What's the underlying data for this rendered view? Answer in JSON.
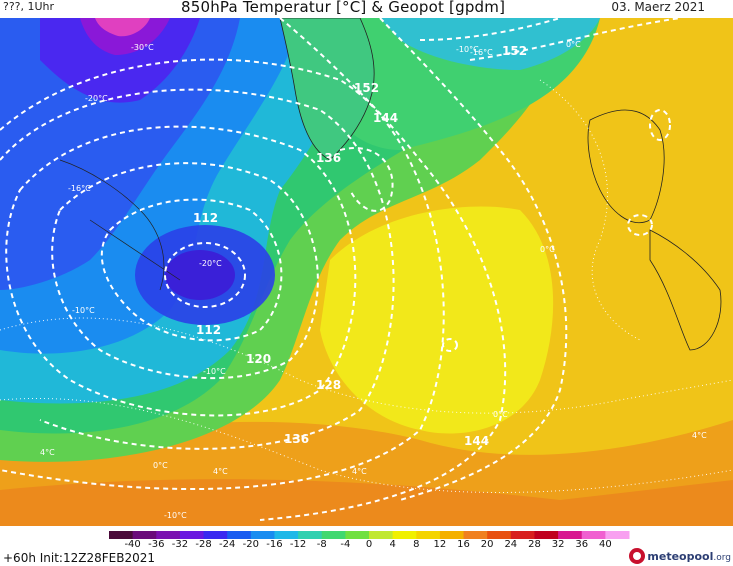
{
  "header": {
    "left_text": "???, 1Uhr",
    "title": "850hPa Temperatur [°C] & Geopot [gpdm]",
    "date": "03. Maerz 2021"
  },
  "map": {
    "contour_labels": [
      {
        "text": "152"
      },
      {
        "text": "152"
      },
      {
        "text": "144"
      },
      {
        "text": "136"
      },
      {
        "text": "112"
      },
      {
        "text": "112"
      },
      {
        "text": "120"
      },
      {
        "text": "128"
      },
      {
        "text": "136"
      },
      {
        "text": "144"
      }
    ],
    "temperature_labels": [
      {
        "text": "-30°C"
      },
      {
        "text": "-20°C"
      },
      {
        "text": "-16°C"
      },
      {
        "text": "-20°C"
      },
      {
        "text": "-10°C"
      },
      {
        "text": "-10°C"
      },
      {
        "text": "-16°C"
      },
      {
        "text": "-10°C"
      },
      {
        "text": "0°C"
      },
      {
        "text": "0°C"
      },
      {
        "text": "0°C"
      },
      {
        "text": "0°C"
      },
      {
        "text": "4°C"
      },
      {
        "text": "4°C"
      },
      {
        "text": "4°C"
      },
      {
        "text": "4°C"
      },
      {
        "text": "-10°C"
      }
    ]
  },
  "legend": {
    "tick_labels": [
      "-40",
      "-36",
      "-32",
      "-28",
      "-24",
      "-20",
      "-16",
      "-12",
      "-8",
      "-4",
      "0",
      "4",
      "8",
      "12",
      "16",
      "20",
      "24",
      "28",
      "32",
      "36",
      "40"
    ],
    "colors": [
      "#4a0a3a",
      "#6a0a7a",
      "#7a10b0",
      "#6a18e0",
      "#3a28f0",
      "#1a5cf0",
      "#1a8cf0",
      "#20b8e8",
      "#30d0b0",
      "#40d870",
      "#70e040",
      "#c0e830",
      "#f0f000",
      "#f4d400",
      "#f4b000",
      "#f08020",
      "#e85010",
      "#d82020",
      "#c00020",
      "#d81890",
      "#f060d0",
      "#f8a0f0"
    ],
    "run_info": "+60h Init:12Z28FEB2021",
    "logo_name": "meteopool",
    "logo_tld": ".org"
  }
}
